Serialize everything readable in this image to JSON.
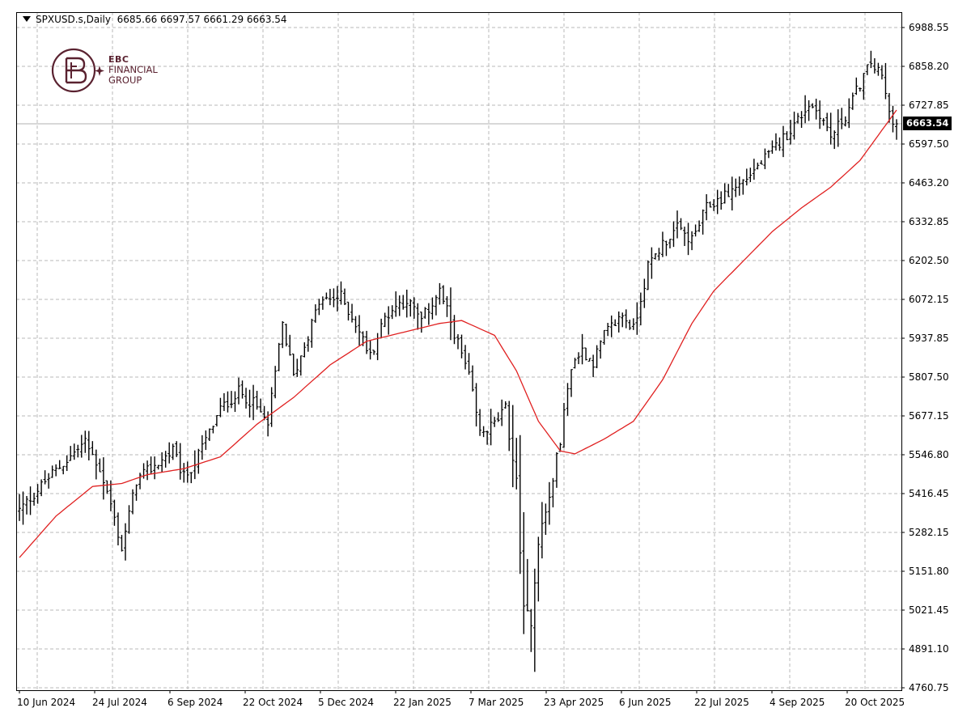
{
  "header": {
    "symbol": "SPXUSD.s,Daily",
    "ohlc": "6685.66 6697.57 6661.29 6663.54"
  },
  "logo": {
    "line1": "EBC",
    "line2": "FINANCIAL",
    "line3": "GROUP"
  },
  "current_price": "6663.54",
  "colors": {
    "bars": "#000000",
    "moving_average": "#e02020",
    "grid": "#b8b8b8",
    "price_line": "#b0b0b0",
    "brand": "#5a2230"
  },
  "chart_data": {
    "type": "ohlc_bars",
    "timeframe": "Daily",
    "grid": true,
    "y_range": [
      4760.75,
      6988.55
    ],
    "y_ticks": [
      "6988.55",
      "6858.20",
      "6727.85",
      "6597.50",
      "6463.20",
      "6332.85",
      "6202.50",
      "6072.15",
      "5937.85",
      "5807.50",
      "5677.15",
      "5546.80",
      "5416.45",
      "5282.15",
      "5151.80",
      "5021.45",
      "4891.10",
      "4760.75"
    ],
    "x_ticks": [
      "10 Jun 2024",
      "24 Jul 2024",
      "6 Sep 2024",
      "22 Oct 2024",
      "5 Dec 2024",
      "22 Jan 2025",
      "7 Mar 2025",
      "23 Apr 2025",
      "6 Jun 2025",
      "22 Jul 2025",
      "4 Sep 2025",
      "20 Oct 2025"
    ],
    "last_price": 6663.54,
    "price_keypoints": [
      [
        0,
        5360
      ],
      [
        8,
        5470
      ],
      [
        18,
        5590
      ],
      [
        22,
        5500
      ],
      [
        25,
        5380
      ],
      [
        28,
        5230
      ],
      [
        32,
        5460
      ],
      [
        42,
        5560
      ],
      [
        45,
        5470
      ],
      [
        48,
        5520
      ],
      [
        55,
        5700
      ],
      [
        60,
        5760
      ],
      [
        64,
        5720
      ],
      [
        68,
        5650
      ],
      [
        72,
        5990
      ],
      [
        75,
        5810
      ],
      [
        82,
        6060
      ],
      [
        88,
        6080
      ],
      [
        92,
        5990
      ],
      [
        96,
        5880
      ],
      [
        100,
        6010
      ],
      [
        103,
        6050
      ],
      [
        106,
        6070
      ],
      [
        110,
        6000
      ],
      [
        115,
        6100
      ],
      [
        119,
        5960
      ],
      [
        123,
        5810
      ],
      [
        126,
        5620
      ],
      [
        130,
        5650
      ],
      [
        133,
        5700
      ],
      [
        136,
        5450
      ],
      [
        138,
        5020
      ],
      [
        140,
        4990
      ],
      [
        142,
        5260
      ],
      [
        145,
        5400
      ],
      [
        148,
        5600
      ],
      [
        151,
        5850
      ],
      [
        154,
        5900
      ],
      [
        157,
        5860
      ],
      [
        160,
        5950
      ],
      [
        165,
        6020
      ],
      [
        168,
        5970
      ],
      [
        172,
        6180
      ],
      [
        176,
        6260
      ],
      [
        180,
        6310
      ],
      [
        184,
        6270
      ],
      [
        188,
        6380
      ],
      [
        193,
        6420
      ],
      [
        198,
        6470
      ],
      [
        202,
        6520
      ],
      [
        206,
        6570
      ],
      [
        212,
        6660
      ],
      [
        216,
        6730
      ],
      [
        219,
        6700
      ],
      [
        222,
        6620
      ],
      [
        226,
        6690
      ],
      [
        230,
        6800
      ],
      [
        233,
        6870
      ],
      [
        236,
        6820
      ],
      [
        238,
        6700
      ],
      [
        240,
        6663.54
      ]
    ],
    "ma_keypoints": [
      [
        0,
        5200
      ],
      [
        10,
        5340
      ],
      [
        20,
        5440
      ],
      [
        28,
        5450
      ],
      [
        35,
        5480
      ],
      [
        45,
        5500
      ],
      [
        55,
        5540
      ],
      [
        65,
        5650
      ],
      [
        75,
        5740
      ],
      [
        85,
        5850
      ],
      [
        95,
        5930
      ],
      [
        105,
        5960
      ],
      [
        115,
        5990
      ],
      [
        121,
        6000
      ],
      [
        130,
        5950
      ],
      [
        136,
        5830
      ],
      [
        142,
        5660
      ],
      [
        148,
        5560
      ],
      [
        152,
        5550
      ],
      [
        160,
        5600
      ],
      [
        168,
        5660
      ],
      [
        176,
        5800
      ],
      [
        184,
        5990
      ],
      [
        190,
        6100
      ],
      [
        198,
        6200
      ],
      [
        206,
        6300
      ],
      [
        214,
        6380
      ],
      [
        222,
        6450
      ],
      [
        230,
        6540
      ],
      [
        240,
        6710
      ]
    ]
  }
}
